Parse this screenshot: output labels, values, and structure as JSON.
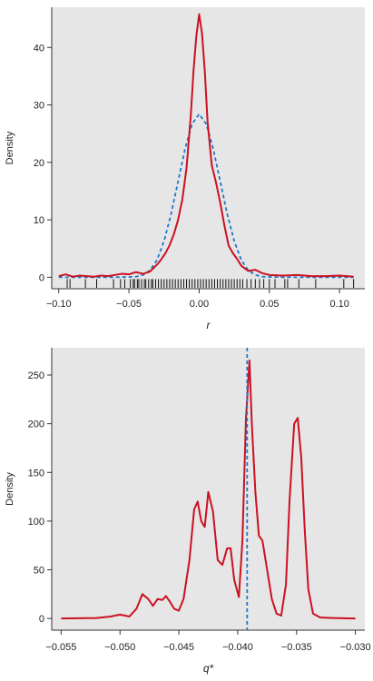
{
  "chart_data": [
    {
      "type": "line",
      "xlabel": "r",
      "ylabel": "Density",
      "xlim": [
        -0.105,
        0.118
      ],
      "ylim": [
        -2,
        47
      ],
      "x_ticks": [
        -0.1,
        -0.05,
        0.0,
        0.05,
        0.1
      ],
      "x_tick_labels": [
        "−0.10",
        "−0.05",
        "0.00",
        "0.05",
        "0.10"
      ],
      "y_ticks": [
        0,
        10,
        20,
        30,
        40
      ],
      "y_tick_labels": [
        "0",
        "10",
        "20",
        "30",
        "40"
      ],
      "grid": false,
      "background": "#e6e6e6",
      "series": [
        {
          "style": "solid",
          "color": "#cc1122",
          "x": [
            -0.1,
            -0.095,
            -0.09,
            -0.085,
            -0.08,
            -0.075,
            -0.07,
            -0.065,
            -0.06,
            -0.055,
            -0.05,
            -0.045,
            -0.04,
            -0.035,
            -0.03,
            -0.027,
            -0.024,
            -0.021,
            -0.018,
            -0.015,
            -0.012,
            -0.009,
            -0.006,
            -0.004,
            -0.002,
            0.0,
            0.002,
            0.004,
            0.006,
            0.009,
            0.012,
            0.015,
            0.018,
            0.021,
            0.024,
            0.027,
            0.03,
            0.035,
            0.04,
            0.045,
            0.05,
            0.06,
            0.07,
            0.08,
            0.09,
            0.1,
            0.11
          ],
          "y": [
            0.2,
            0.5,
            0.1,
            0.3,
            0.2,
            0.1,
            0.3,
            0.2,
            0.4,
            0.6,
            0.5,
            0.9,
            0.6,
            1.0,
            2.2,
            3.1,
            4.2,
            5.6,
            7.5,
            10.0,
            13.5,
            19.0,
            28.0,
            36.0,
            42.0,
            45.8,
            42.5,
            36.0,
            27.0,
            19.5,
            16.5,
            13.0,
            9.0,
            5.5,
            4.2,
            3.2,
            2.0,
            1.1,
            1.3,
            0.7,
            0.4,
            0.3,
            0.4,
            0.2,
            0.2,
            0.3,
            0.1
          ]
        },
        {
          "style": "dashed",
          "color": "#1f78c8",
          "x": [
            -0.1,
            -0.09,
            -0.08,
            -0.07,
            -0.06,
            -0.05,
            -0.045,
            -0.04,
            -0.035,
            -0.03,
            -0.025,
            -0.02,
            -0.015,
            -0.01,
            -0.005,
            0.0,
            0.005,
            0.01,
            0.015,
            0.02,
            0.025,
            0.03,
            0.035,
            0.04,
            0.045,
            0.05,
            0.06,
            0.07,
            0.08,
            0.09,
            0.1,
            0.11
          ],
          "y": [
            0,
            0,
            0,
            0,
            0,
            0.05,
            0.1,
            0.4,
            1.2,
            3.0,
            6.3,
            11.0,
            16.7,
            22.4,
            26.7,
            28.4,
            26.7,
            22.4,
            16.7,
            11.0,
            6.3,
            3.0,
            1.2,
            0.4,
            0.1,
            0.05,
            0,
            0,
            0,
            0,
            0,
            0
          ]
        }
      ],
      "rug": [
        -0.094,
        -0.092,
        -0.081,
        -0.073,
        -0.061,
        -0.056,
        -0.053,
        -0.049,
        -0.047,
        -0.046,
        -0.044,
        -0.043,
        -0.041,
        -0.039,
        -0.038,
        -0.036,
        -0.034,
        -0.033,
        -0.031,
        -0.029,
        -0.027,
        -0.025,
        -0.023,
        -0.021,
        -0.019,
        -0.017,
        -0.015,
        -0.013,
        -0.011,
        -0.009,
        -0.007,
        -0.005,
        -0.003,
        -0.001,
        0.001,
        0.003,
        0.005,
        0.007,
        0.009,
        0.011,
        0.013,
        0.015,
        0.017,
        0.019,
        0.021,
        0.023,
        0.025,
        0.027,
        0.029,
        0.031,
        0.034,
        0.037,
        0.04,
        0.043,
        0.046,
        0.05,
        0.054,
        0.061,
        0.063,
        0.071,
        0.083,
        0.103,
        0.11
      ]
    },
    {
      "type": "line",
      "xlabel": "q*",
      "ylabel": "Density",
      "xlim": [
        -0.0558,
        -0.0292
      ],
      "ylim": [
        -12,
        278
      ],
      "x_ticks": [
        -0.055,
        -0.05,
        -0.045,
        -0.04,
        -0.035,
        -0.03
      ],
      "x_tick_labels": [
        "−0.055",
        "−0.050",
        "−0.045",
        "−0.040",
        "−0.035",
        "−0.030"
      ],
      "y_ticks": [
        0,
        50,
        100,
        150,
        200,
        250
      ],
      "y_tick_labels": [
        "0",
        "50",
        "100",
        "150",
        "200",
        "250"
      ],
      "grid": false,
      "background": "#e6e6e6",
      "vline": {
        "x": -0.0392,
        "color": "#1f78c8",
        "style": "dashed"
      },
      "series": [
        {
          "style": "solid",
          "color": "#cc1122",
          "x": [
            -0.055,
            -0.052,
            -0.0508,
            -0.05,
            -0.0492,
            -0.0486,
            -0.0481,
            -0.0476,
            -0.0472,
            -0.0468,
            -0.0464,
            -0.0461,
            -0.0458,
            -0.0454,
            -0.045,
            -0.0446,
            -0.0441,
            -0.0437,
            -0.0434,
            -0.0431,
            -0.0428,
            -0.0425,
            -0.0421,
            -0.0417,
            -0.0413,
            -0.0409,
            -0.0406,
            -0.0403,
            -0.0399,
            -0.0396,
            -0.0393,
            -0.039,
            -0.0388,
            -0.0385,
            -0.0382,
            -0.0379,
            -0.0375,
            -0.0371,
            -0.0367,
            -0.0363,
            -0.0359,
            -0.0356,
            -0.0352,
            -0.0349,
            -0.0346,
            -0.0343,
            -0.034,
            -0.0336,
            -0.033,
            -0.032,
            -0.031,
            -0.03
          ],
          "y": [
            0,
            0.5,
            2,
            4,
            2,
            10,
            25,
            20,
            13,
            20,
            19,
            23,
            18,
            10,
            8,
            20,
            60,
            112,
            120,
            100,
            94,
            130,
            110,
            60,
            55,
            72,
            72,
            40,
            22,
            80,
            205,
            265,
            200,
            130,
            85,
            80,
            50,
            20,
            5,
            3,
            35,
            120,
            200,
            206,
            165,
            90,
            30,
            5,
            1,
            0.5,
            0.2,
            0
          ]
        }
      ]
    }
  ]
}
